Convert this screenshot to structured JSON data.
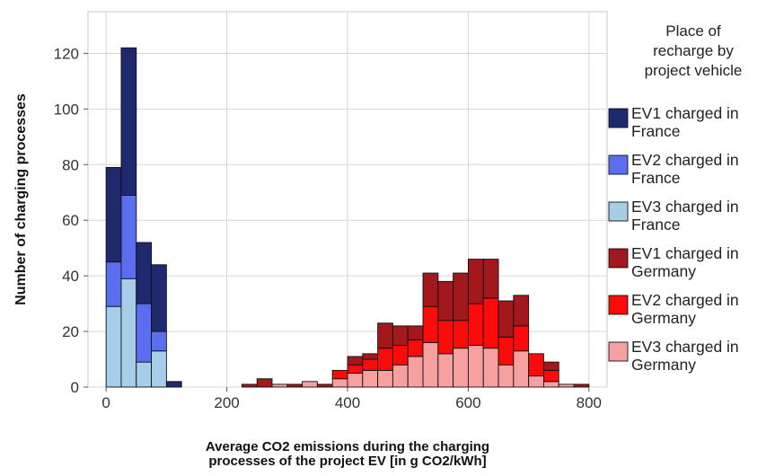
{
  "chart_data": {
    "type": "bar",
    "stacked": true,
    "xlabel": "Average CO2 emissions during the charging processes of the project EV [in  g CO2/kWh]",
    "ylabel": "Number of charging processes",
    "xlim": [
      -30,
      830
    ],
    "ylim": [
      0,
      135
    ],
    "xticks": [
      0,
      200,
      400,
      600,
      800
    ],
    "yticks": [
      0,
      20,
      40,
      60,
      80,
      100,
      120
    ],
    "grid": true,
    "legend_position": "right",
    "legend_title": "Place of recharge by project vehicle",
    "bin_width": 25,
    "bin_starts": [
      0,
      25,
      50,
      75,
      100,
      125,
      150,
      175,
      200,
      225,
      250,
      275,
      300,
      325,
      350,
      375,
      400,
      425,
      450,
      475,
      500,
      525,
      550,
      575,
      600,
      625,
      650,
      675,
      700,
      725,
      750,
      775
    ],
    "series": [
      {
        "name": "EV3 charged in France",
        "color": "#a6cee8",
        "values": [
          29,
          39,
          9,
          13,
          0,
          0,
          0,
          0,
          0,
          0,
          0,
          0,
          0,
          0,
          0,
          0,
          0,
          0,
          0,
          0,
          0,
          0,
          0,
          0,
          0,
          0,
          0,
          0,
          0,
          0,
          0,
          0
        ]
      },
      {
        "name": "EV2 charged in France",
        "color": "#5b6ef0",
        "values": [
          16,
          30,
          21,
          7,
          0,
          0,
          0,
          0,
          0,
          0,
          0,
          0,
          0,
          0,
          0,
          0,
          0,
          0,
          0,
          0,
          0,
          0,
          0,
          0,
          0,
          0,
          0,
          0,
          0,
          0,
          0,
          0
        ]
      },
      {
        "name": "EV1 charged in France",
        "color": "#1f2a6e",
        "values": [
          34,
          53,
          22,
          24,
          2,
          0,
          0,
          0,
          0,
          0,
          0,
          0,
          0,
          0,
          0,
          0,
          0,
          0,
          0,
          0,
          0,
          0,
          0,
          0,
          0,
          0,
          0,
          0,
          0,
          0,
          0,
          0
        ]
      },
      {
        "name": "EV3 charged in Germany",
        "color": "#f7a0a0",
        "values": [
          0,
          0,
          0,
          0,
          0,
          0,
          0,
          0,
          0,
          0,
          0,
          1,
          0,
          2,
          0,
          3,
          5,
          6,
          6,
          8,
          11,
          16,
          12,
          14,
          15,
          14,
          8,
          13,
          4,
          2,
          1,
          0
        ]
      },
      {
        "name": "EV2 charged in Germany",
        "color": "#ff0a0a",
        "values": [
          0,
          0,
          0,
          0,
          0,
          0,
          0,
          0,
          0,
          0,
          0,
          0,
          0,
          0,
          0,
          3,
          3,
          4,
          8,
          7,
          6,
          13,
          12,
          10,
          15,
          18,
          10,
          9,
          8,
          4,
          0,
          0
        ]
      },
      {
        "name": "EV1 charged in Germany",
        "color": "#a2181c",
        "values": [
          0,
          0,
          0,
          0,
          0,
          0,
          0,
          0,
          0,
          1,
          3,
          0,
          1,
          0,
          1,
          0,
          3,
          2,
          9,
          7,
          5,
          12,
          14,
          17,
          16,
          14,
          13,
          11,
          0,
          3,
          0,
          1
        ]
      }
    ],
    "legend_order": [
      "EV1 charged in France",
      "EV2 charged in France",
      "EV3 charged in France",
      "EV1 charged in Germany",
      "EV2 charged in Germany",
      "EV3 charged in Germany"
    ]
  }
}
